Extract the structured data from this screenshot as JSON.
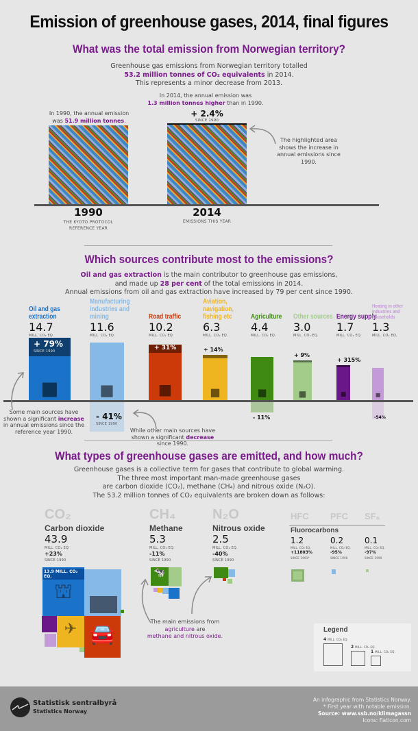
{
  "title": "Emission of greenhouse gases, 2014, final figures",
  "section1": {
    "heading": "What was the total emission from Norwegian territory?",
    "intro1": "Greenhouse gas emissions from Norwegian territory totalled",
    "intro2_highlight": "53.2 million tonnes of CO₂ equivalents",
    "intro2_rest": " in 2014.",
    "intro3": "This represents a minor decrease from 2013.",
    "note2014_1": "In 2014, the annual emission was",
    "note2014_highlight": "1.3 million tonnes higher",
    "note2014_rest": " than in 1990.",
    "note1990_1": "In 1990, the annual emission",
    "note1990_pre": "was ",
    "note1990_highlight": "51.9 million tonnes",
    "note1990_post": ".",
    "change": "+ 2.4%",
    "since": "SINCE 1990",
    "annotation": "The highlighted area shows the increase in annual emissions since 1990.",
    "bars": [
      {
        "year": "1990",
        "sub": "THE KYOTO PROTOCOL REFERENCE YEAR",
        "value": 51.9
      },
      {
        "year": "2014",
        "sub": "EMISSIONS THIS YEAR",
        "value": 53.2
      }
    ]
  },
  "section2": {
    "heading": "Which sources contribute most to the emissions?",
    "intro1_highlight": "Oil and gas extraction",
    "intro1_rest": " is the main contributor to greenhouse gas emissions,",
    "intro2_pre": "and made up ",
    "intro2_highlight": "28 per cent",
    "intro2_rest": " of the total emissions in 2014.",
    "intro3": "Annual emissions from oil and gas extraction have increased by 79 per cent since 1990.",
    "unit": "MILL. CO₂ EQ.",
    "since": "SINCE 1990",
    "sources": [
      {
        "name": "Oil and gas extraction",
        "value": "14.7",
        "change": "+ 79%",
        "color": "#1a73c9",
        "icon": "oil-platform-icon"
      },
      {
        "name": "Manufacturing industries and mining",
        "value": "11.6",
        "change": "- 41%",
        "color": "#86b9e6",
        "icon": "factory-icon"
      },
      {
        "name": "Road traffic",
        "value": "10.2",
        "change": "+ 31%",
        "color": "#cc3a0a",
        "icon": "cars-icon"
      },
      {
        "name": "Aviation, navigation, fishing etc",
        "value": "6.3",
        "change": "+ 14%",
        "color": "#efb520",
        "icon": "plane-ship-icon"
      },
      {
        "name": "Agriculture",
        "value": "4.4",
        "change": "- 11%",
        "color": "#3f8a12",
        "icon": "cow-icon"
      },
      {
        "name": "Other sources",
        "value": "3.0",
        "change": "+ 9%",
        "color": "#a3cc8a",
        "icon": "safe-icon"
      },
      {
        "name": "Energy supply",
        "value": "1.7",
        "change": "+ 315%",
        "color": "#6a178a",
        "icon": "power-pylon-icon"
      },
      {
        "name": "Heating in other industries and households",
        "value": "1.3",
        "change": "-54%",
        "color": "#c59ad8",
        "icon": "radiator-icon"
      }
    ],
    "ann_left_1": "Some main sources have shown a significant",
    "ann_left_highlight": "increase",
    "ann_left_2": " in annual emissions since the reference year 1990.",
    "ann_mid_1": "While other main sources have shown a significant",
    "ann_mid_highlight": "decrease",
    "ann_mid_2": " since 1990."
  },
  "section3": {
    "heading": "What types of greenhouse gases are emitted, and how much?",
    "intro1": "Greenhouse gases is a collective term for gases that contribute to global warming.",
    "intro2": "The three most important man-made greenhouse gases",
    "intro3": "are carbon dioxide (CO₂), methane (CH₄) and nitrous oxide (N₂O).",
    "intro4": "The 53.2 million tonnes of CO₂ equivalents are broken down as follows:",
    "unit": "MILL. CO₂ EQ.",
    "gases": [
      {
        "symbol": "CO₂",
        "name": "Carbon dioxide",
        "value": "43.9",
        "change": "+23%",
        "since": "SINCE 1990"
      },
      {
        "symbol": "CH₄",
        "name": "Methane",
        "value": "5.3",
        "change": "-11%",
        "since": "SINCE 1990"
      },
      {
        "symbol": "N₂O",
        "name": "Nitrous oxide",
        "value": "2.5",
        "change": "-40%",
        "since": "SINCE 1990"
      }
    ],
    "fluoro_label": "Fluorocarbons",
    "fluoro": [
      {
        "symbol": "HFC",
        "value": "1.2",
        "change": "+11803%",
        "since": "SINCE 1991*"
      },
      {
        "symbol": "PFC",
        "value": "0.2",
        "change": "-95%",
        "since": "SINCE 1990"
      },
      {
        "symbol": "SF₆",
        "value": "0.1",
        "change": "-97%",
        "since": "SINCE 1990"
      }
    ],
    "co2_oil_label": "13.9 MILL. CO₂ EQ.",
    "ann_1": "The main emissions from",
    "ann_highlight1": "agriculture",
    "ann_2": " are",
    "ann_highlight2": "methane and nitrous oxide",
    "ann_3": ".",
    "legend": {
      "title": "Legend",
      "items": [
        {
          "value": "4",
          "unit": "MILL. CO₂ EQ."
        },
        {
          "value": "2",
          "unit": "MILL. CO₂ EQ."
        },
        {
          "value": "1",
          "unit": "MILL. CO₂ EQ."
        }
      ]
    }
  },
  "footer": {
    "logo_name": "Statistisk sentralbyrå",
    "logo_sub": "Statistics Norway",
    "line1": "An infographic from Statistics Norway.",
    "line2": "* First year with notable emission.",
    "line3": "Source: www.ssb.no/klimagassn",
    "line4": "Icons: flaticon.com"
  }
}
